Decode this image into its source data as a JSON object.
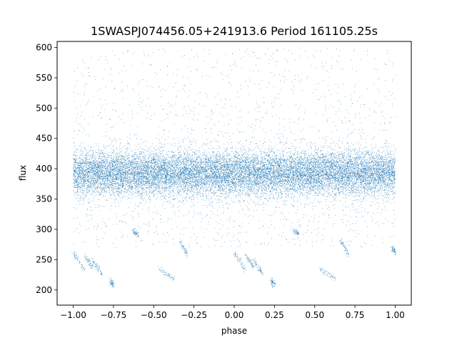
{
  "chart_data": {
    "type": "scatter",
    "title": "1SWASPJ074456.05+241913.6 Period 161105.25s",
    "xlabel": "phase",
    "ylabel": "flux",
    "xlim": [
      -1.1,
      1.1
    ],
    "ylim": [
      175,
      610
    ],
    "xticks": [
      -1.0,
      -0.75,
      -0.5,
      -0.25,
      0.0,
      0.25,
      0.5,
      0.75,
      1.0
    ],
    "xtick_labels": [
      "−1.00",
      "−0.75",
      "−0.50",
      "−0.25",
      "0.00",
      "0.25",
      "0.50",
      "0.75",
      "1.00"
    ],
    "yticks": [
      200,
      250,
      300,
      350,
      400,
      450,
      500,
      550,
      600
    ],
    "ytick_labels": [
      "200",
      "250",
      "300",
      "350",
      "400",
      "450",
      "500",
      "550",
      "600"
    ],
    "grid": false,
    "legend": "none",
    "marker_color": "#1f77b4",
    "series": [
      {
        "component": "baseline band",
        "x_range": [
          -1.0,
          1.0
        ],
        "y_center": 392,
        "y_spread": 18,
        "approx_points": 16000
      },
      {
        "component": "scattered upper outliers",
        "x_range": [
          -1.0,
          1.0
        ],
        "y_range": [
          410,
          600
        ],
        "approx_points": 1400
      },
      {
        "component": "scattered lower outliers",
        "x_range": [
          -1.0,
          1.0
        ],
        "y_range": [
          270,
          370
        ],
        "approx_points": 900
      },
      {
        "component": "low-flux trails",
        "segments": [
          {
            "x": [
              -1.0,
              -0.93
            ],
            "y": [
              262,
              233
            ]
          },
          {
            "x": [
              -0.93,
              -0.88
            ],
            "y": [
              258,
              238
            ]
          },
          {
            "x": [
              -0.88,
              -0.82
            ],
            "y": [
              250,
              225
            ]
          },
          {
            "x": [
              -0.77,
              -0.75
            ],
            "y": [
              215,
              208
            ]
          },
          {
            "x": [
              -0.63,
              -0.6
            ],
            "y": [
              298,
              292
            ]
          },
          {
            "x": [
              -0.47,
              -0.37
            ],
            "y": [
              235,
              218
            ]
          },
          {
            "x": [
              -0.34,
              -0.29
            ],
            "y": [
              282,
              258
            ]
          },
          {
            "x": [
              0.0,
              0.07
            ],
            "y": [
              262,
              233
            ]
          },
          {
            "x": [
              0.07,
              0.12
            ],
            "y": [
              258,
              238
            ]
          },
          {
            "x": [
              0.12,
              0.18
            ],
            "y": [
              250,
              225
            ]
          },
          {
            "x": [
              0.23,
              0.25
            ],
            "y": [
              215,
              208
            ]
          },
          {
            "x": [
              0.37,
              0.4
            ],
            "y": [
              298,
              292
            ]
          },
          {
            "x": [
              0.53,
              0.63
            ],
            "y": [
              235,
              218
            ]
          },
          {
            "x": [
              0.66,
              0.71
            ],
            "y": [
              282,
              258
            ]
          },
          {
            "x": [
              0.98,
              1.0
            ],
            "y": [
              270,
              262
            ]
          }
        ]
      }
    ]
  }
}
